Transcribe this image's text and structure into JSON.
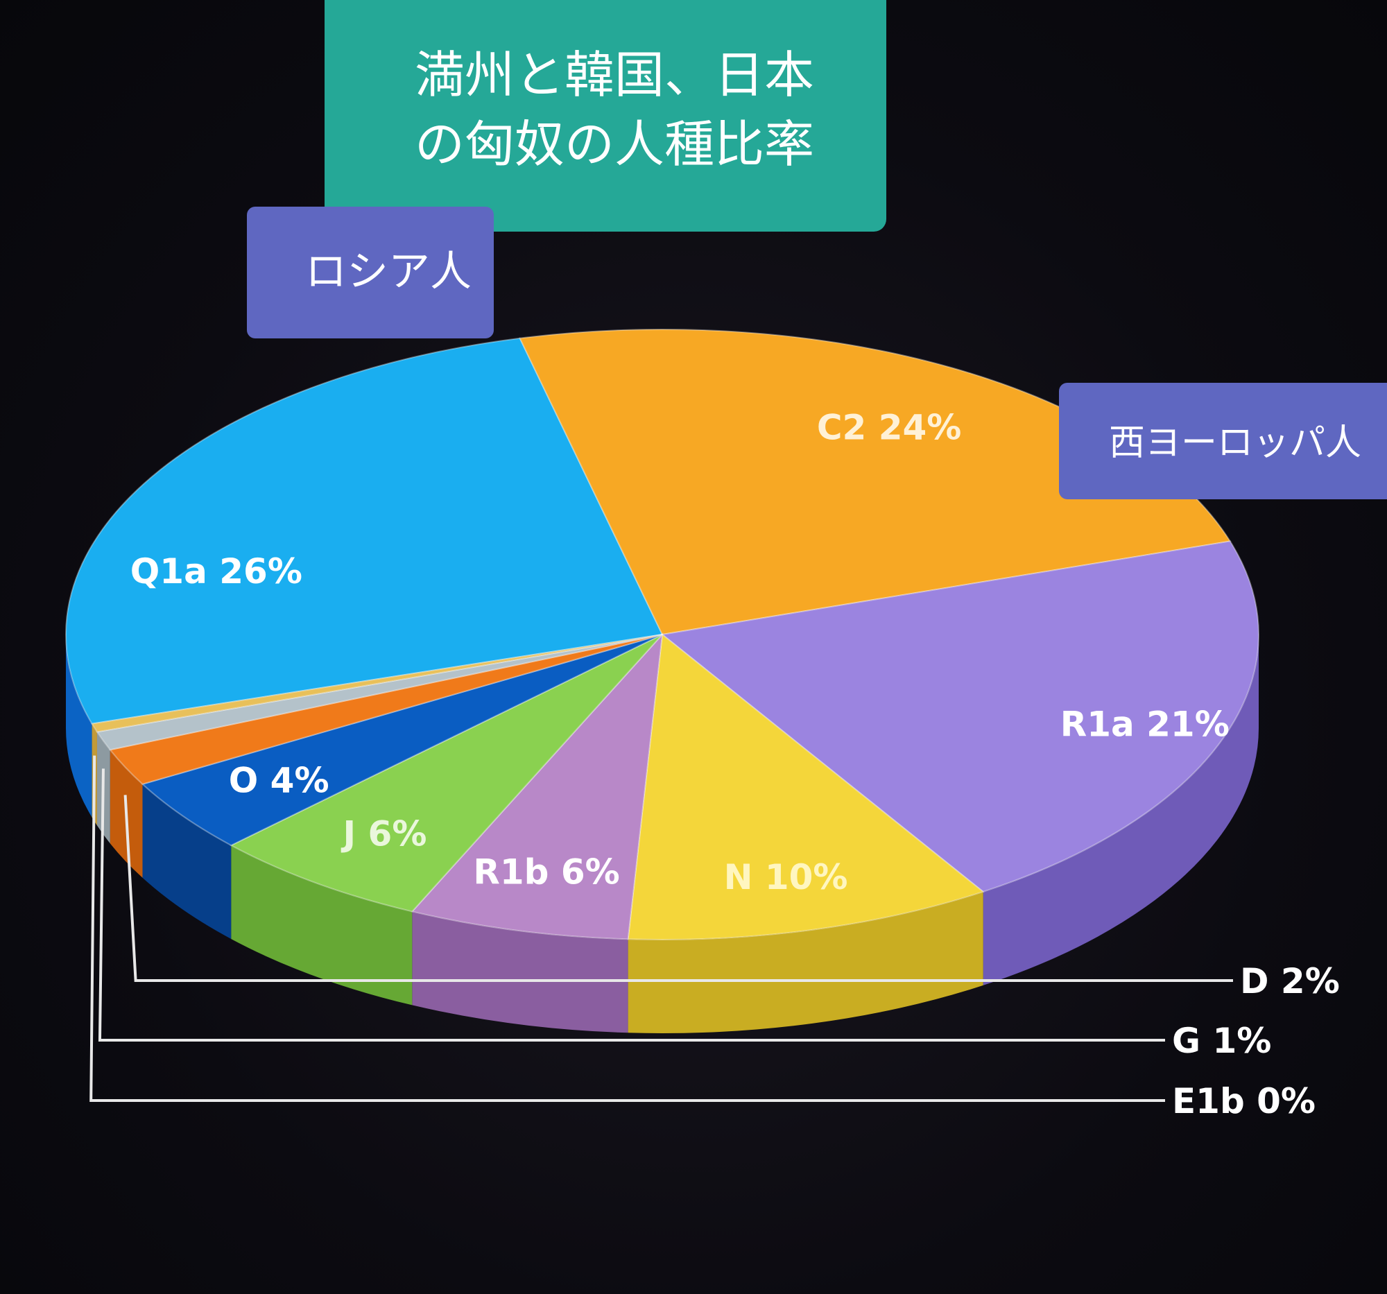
{
  "title": {
    "line1": "満州と韓国、日本",
    "line2": "の匈奴の人種比率"
  },
  "annotations": {
    "russian": "ロシア人",
    "western_european": "西ヨーロッパ人"
  },
  "chart_data": {
    "type": "pie",
    "title": "",
    "slices": [
      {
        "label": "Q1a 26%",
        "name": "Q1a",
        "value": 26,
        "color": "#1aaef0",
        "side": "#0b63c4"
      },
      {
        "label": "C2 24%",
        "name": "C2",
        "value": 24,
        "color": "#f7a824",
        "side": "#e08613"
      },
      {
        "label": "R1a 21%",
        "name": "R1a",
        "value": 21,
        "color": "#9b84e0",
        "side": "#6f5bb8"
      },
      {
        "label": "N 10%",
        "name": "N",
        "value": 10,
        "color": "#f4d63a",
        "side": "#c9ad22"
      },
      {
        "label": "R1b 6%",
        "name": "R1b",
        "value": 6,
        "color": "#b888c8",
        "side": "#8a5ea0"
      },
      {
        "label": "J 6%",
        "name": "J",
        "value": 6,
        "color": "#8ad150",
        "side": "#66a834"
      },
      {
        "label": "O 4%",
        "name": "O",
        "value": 4,
        "color": "#0a5dc2",
        "side": "#063f8a"
      },
      {
        "label": "D 2%",
        "name": "D",
        "value": 2,
        "color": "#f07a1a",
        "side": "#c45c0c"
      },
      {
        "label": "G 1%",
        "name": "G",
        "value": 1,
        "color": "#b4c2ca",
        "side": "#8d9aa1"
      },
      {
        "label": "E1b 0%",
        "name": "E1b",
        "value": 0,
        "color": "#e8c05a",
        "side": "#c29a38"
      }
    ]
  }
}
